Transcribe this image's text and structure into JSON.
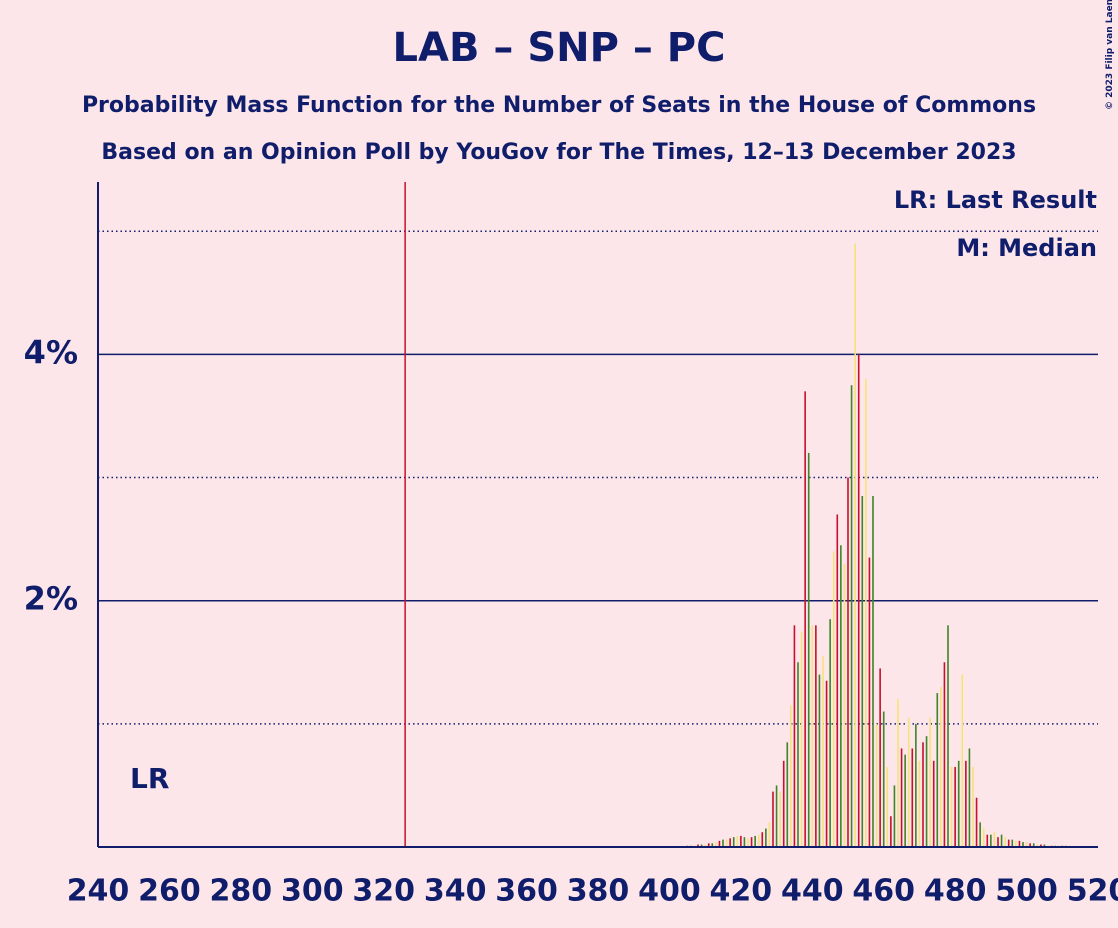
{
  "chart_data": {
    "type": "bar",
    "title": "LAB – SNP – PC",
    "subtitle": "Probability Mass Function for the Number of Seats in the House of Commons",
    "subtitle2": "Based on an Opinion Poll by YouGov for The Times, 12–13 December 2023",
    "copyright": "© 2023 Filip van Laenen",
    "legend": [
      "LR: Last Result",
      "M: Median"
    ],
    "last_result_label": "LR",
    "last_result": 326,
    "last_result_color": "#c8102e",
    "colors": [
      "#c8102e",
      "#3f8428",
      "#f4e27a"
    ],
    "x": [
      405,
      406,
      407,
      408,
      409,
      410,
      411,
      412,
      413,
      414,
      415,
      416,
      417,
      418,
      419,
      420,
      421,
      422,
      423,
      424,
      425,
      426,
      427,
      428,
      429,
      430,
      431,
      432,
      433,
      434,
      435,
      436,
      437,
      438,
      439,
      440,
      441,
      442,
      443,
      444,
      445,
      446,
      447,
      448,
      449,
      450,
      451,
      452,
      453,
      454,
      455,
      456,
      457,
      458,
      459,
      460,
      461,
      462,
      463,
      464,
      465,
      466,
      467,
      468,
      469,
      470,
      471,
      472,
      473,
      474,
      475,
      476,
      477,
      478,
      479,
      480,
      481,
      482,
      483,
      484,
      485,
      486,
      487,
      488,
      489,
      490,
      491,
      492,
      493,
      494,
      495,
      496,
      497,
      498,
      499,
      500,
      501,
      502,
      503,
      504,
      505,
      506,
      507,
      508,
      509,
      510,
      511,
      512,
      513,
      514,
      515
    ],
    "values": [
      0.01,
      0.01,
      0.01,
      0.02,
      0.02,
      0.02,
      0.03,
      0.03,
      0.04,
      0.05,
      0.06,
      0.06,
      0.07,
      0.08,
      0.09,
      0.09,
      0.08,
      0.07,
      0.08,
      0.09,
      0.1,
      0.12,
      0.15,
      0.2,
      0.45,
      0.5,
      0.45,
      0.7,
      0.85,
      1.15,
      1.8,
      1.5,
      1.75,
      3.7,
      3.2,
      1.8,
      1.8,
      1.4,
      1.55,
      1.35,
      1.85,
      2.4,
      2.7,
      2.45,
      2.3,
      3.0,
      3.75,
      4.9,
      4.0,
      2.85,
      3.8,
      2.35,
      2.85,
      1.0,
      1.45,
      1.1,
      0.65,
      0.25,
      0.5,
      1.2,
      0.8,
      0.75,
      1.05,
      0.8,
      1.0,
      0.7,
      0.85,
      0.9,
      1.05,
      0.7,
      1.25,
      1.3,
      1.5,
      1.8,
      0.65,
      0.65,
      0.7,
      1.4,
      0.7,
      0.8,
      0.65,
      0.4,
      0.2,
      0.15,
      0.1,
      0.1,
      0.12,
      0.08,
      0.1,
      0.08,
      0.06,
      0.06,
      0.05,
      0.05,
      0.04,
      0.04,
      0.03,
      0.03,
      0.02,
      0.02,
      0.02,
      0.01,
      0.01,
      0.01,
      0.01,
      0.01,
      0.01,
      0.01,
      0.005,
      0.005,
      0.005
    ],
    "xlim": [
      240,
      520
    ],
    "xticks": [
      240,
      260,
      280,
      300,
      320,
      340,
      360,
      380,
      400,
      420,
      440,
      460,
      480,
      500,
      520
    ],
    "ylim": [
      0,
      5.4
    ],
    "yticks": [
      {
        "value": 2,
        "label": "2%"
      },
      {
        "value": 4,
        "label": "4%"
      }
    ],
    "minor_yticks": [
      1,
      3,
      5
    ],
    "grid": true
  }
}
